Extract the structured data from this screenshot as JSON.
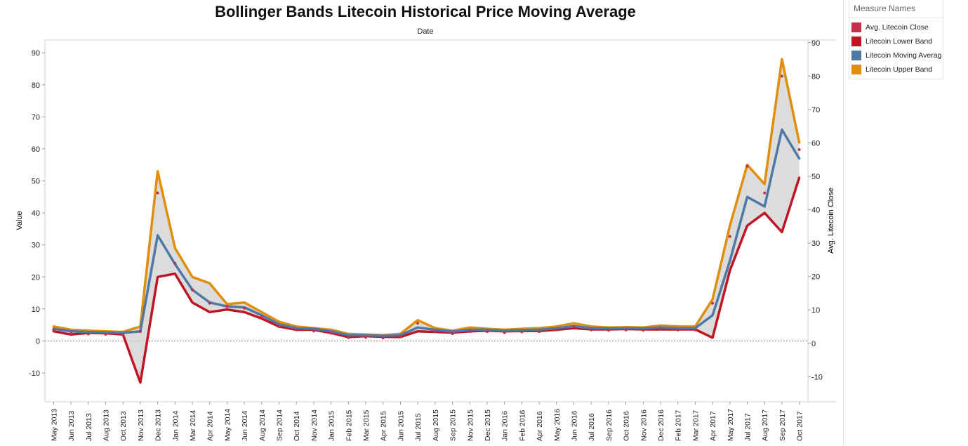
{
  "title": "Bollinger Bands Litecoin Historical Price Moving Average",
  "top_axis_title": "Date",
  "legend": {
    "title": "Measure Names",
    "items": [
      {
        "label": "Avg. Litecoin Close",
        "color": "#c1314a"
      },
      {
        "label": "Litecoin Lower Band",
        "color": "#bf1525"
      },
      {
        "label": "Litecoin Moving Averag",
        "color": "#4e79a7"
      },
      {
        "label": "Litecoin Upper Band",
        "color": "#e08e0b"
      }
    ]
  },
  "chart_data": {
    "type": "line",
    "title": "Bollinger Bands Litecoin Historical Price Moving Average",
    "xlabel": "Date",
    "ylabel": "Value",
    "y2label": "Avg. Litecoin Close",
    "ylim": [
      -19,
      94
    ],
    "yticks": [
      -10,
      0,
      10,
      20,
      30,
      40,
      50,
      60,
      70,
      80,
      90
    ],
    "y2lim": [
      -17.5,
      90.8
    ],
    "y2ticks": [
      -10,
      0,
      10,
      20,
      30,
      40,
      50,
      60,
      70,
      80,
      90
    ],
    "reference_line": 0,
    "grid": false,
    "legend_position": "right",
    "x_tick_labels": [
      "May 2013",
      "Jun 2013",
      "Jul 2013",
      "Aug 2013",
      "Oct 2013",
      "Nov 2013",
      "Dec 2013",
      "Jan 2014",
      "Mar 2014",
      "Apr 2014",
      "May 2014",
      "Jun 2014",
      "Aug 2014",
      "Sep 2014",
      "Oct 2014",
      "Nov 2014",
      "Jan 2015",
      "Feb 2015",
      "Mar 2015",
      "Apr 2015",
      "Jun 2015",
      "Jul 2015",
      "Aug 2015",
      "Sep 2015",
      "Nov 2015",
      "Dec 2015",
      "Jan 2016",
      "Feb 2016",
      "Apr 2016",
      "May 2016",
      "Jun 2016",
      "Jul 2016",
      "Sep 2016",
      "Oct 2016",
      "Nov 2016",
      "Dec 2016",
      "Feb 2017",
      "Mar 2017",
      "Apr 2017",
      "May 2017",
      "Jul 2017",
      "Aug 2017",
      "Sep 2017",
      "Oct 2017"
    ],
    "x": [
      "May 2013",
      "Jun 2013",
      "Jul 2013",
      "Aug 2013",
      "Oct 2013",
      "Nov 2013",
      "Dec 2013",
      "Jan 2014",
      "Mar 2014",
      "Apr 2014",
      "May 2014",
      "Jun 2014",
      "Aug 2014",
      "Sep 2014",
      "Oct 2014",
      "Nov 2014",
      "Jan 2015",
      "Feb 2015",
      "Mar 2015",
      "Apr 2015",
      "Jun 2015",
      "Jul 2015",
      "Aug 2015",
      "Sep 2015",
      "Nov 2015",
      "Dec 2015",
      "Jan 2016",
      "Feb 2016",
      "Apr 2016",
      "May 2016",
      "Jun 2016",
      "Jul 2016",
      "Sep 2016",
      "Oct 2016",
      "Nov 2016",
      "Dec 2016",
      "Feb 2017",
      "Mar 2017",
      "Apr 2017",
      "May 2017",
      "Jul 2017",
      "Aug 2017",
      "Sep 2017",
      "Oct 2017"
    ],
    "series": [
      {
        "name": "Litecoin Upper Band",
        "color": "#e08e0b",
        "values": [
          4.5,
          3.5,
          3.2,
          3.0,
          2.8,
          4.5,
          53.0,
          29.0,
          20.0,
          18.0,
          11.5,
          12.0,
          9.0,
          6.0,
          4.5,
          4.0,
          3.5,
          2.2,
          2.0,
          1.8,
          2.2,
          6.5,
          4.0,
          3.2,
          4.2,
          3.8,
          3.5,
          3.8,
          4.0,
          4.5,
          5.5,
          4.5,
          4.2,
          4.3,
          4.2,
          4.8,
          4.5,
          4.5,
          13.0,
          36.0,
          55.0,
          49.0,
          88.0,
          62.0
        ]
      },
      {
        "name": "Litecoin Moving Averag",
        "color": "#4e79a7",
        "values": [
          3.8,
          3.0,
          2.8,
          2.7,
          2.5,
          3.0,
          33.0,
          24.0,
          16.0,
          12.0,
          10.8,
          10.5,
          8.0,
          5.2,
          4.0,
          3.8,
          3.0,
          1.8,
          1.8,
          1.6,
          1.8,
          4.2,
          3.5,
          2.9,
          3.5,
          3.5,
          3.2,
          3.4,
          3.5,
          4.0,
          4.6,
          4.0,
          3.9,
          4.0,
          3.9,
          4.2,
          4.0,
          4.0,
          8.0,
          25.0,
          45.0,
          42.0,
          66.0,
          57.0
        ]
      },
      {
        "name": "Litecoin Lower Band",
        "color": "#bf1525",
        "values": [
          3.0,
          2.0,
          2.5,
          2.4,
          2.0,
          -13.0,
          20.0,
          21.0,
          12.0,
          9.0,
          9.8,
          9.0,
          7.0,
          4.5,
          3.5,
          3.5,
          2.5,
          1.2,
          1.5,
          1.3,
          1.2,
          3.0,
          2.8,
          2.6,
          3.0,
          3.2,
          3.0,
          3.1,
          3.1,
          3.5,
          4.0,
          3.6,
          3.6,
          3.7,
          3.6,
          3.6,
          3.6,
          3.6,
          1.0,
          22.0,
          36.0,
          40.0,
          34.0,
          51.0
        ]
      },
      {
        "name": "Avg. Litecoin Close",
        "color": "#c1314a",
        "values": [
          4.0,
          3.0,
          2.8,
          2.7,
          2.5,
          3.5,
          45.0,
          24.0,
          16.0,
          12.0,
          11.0,
          10.5,
          8.0,
          5.0,
          4.0,
          3.7,
          3.0,
          1.7,
          1.8,
          1.6,
          2.0,
          6.0,
          3.5,
          2.9,
          3.5,
          3.5,
          3.2,
          3.4,
          3.5,
          4.0,
          5.0,
          4.0,
          3.9,
          4.0,
          3.9,
          4.2,
          4.0,
          4.0,
          12.0,
          32.0,
          53.0,
          45.0,
          80.0,
          58.0
        ]
      }
    ]
  }
}
